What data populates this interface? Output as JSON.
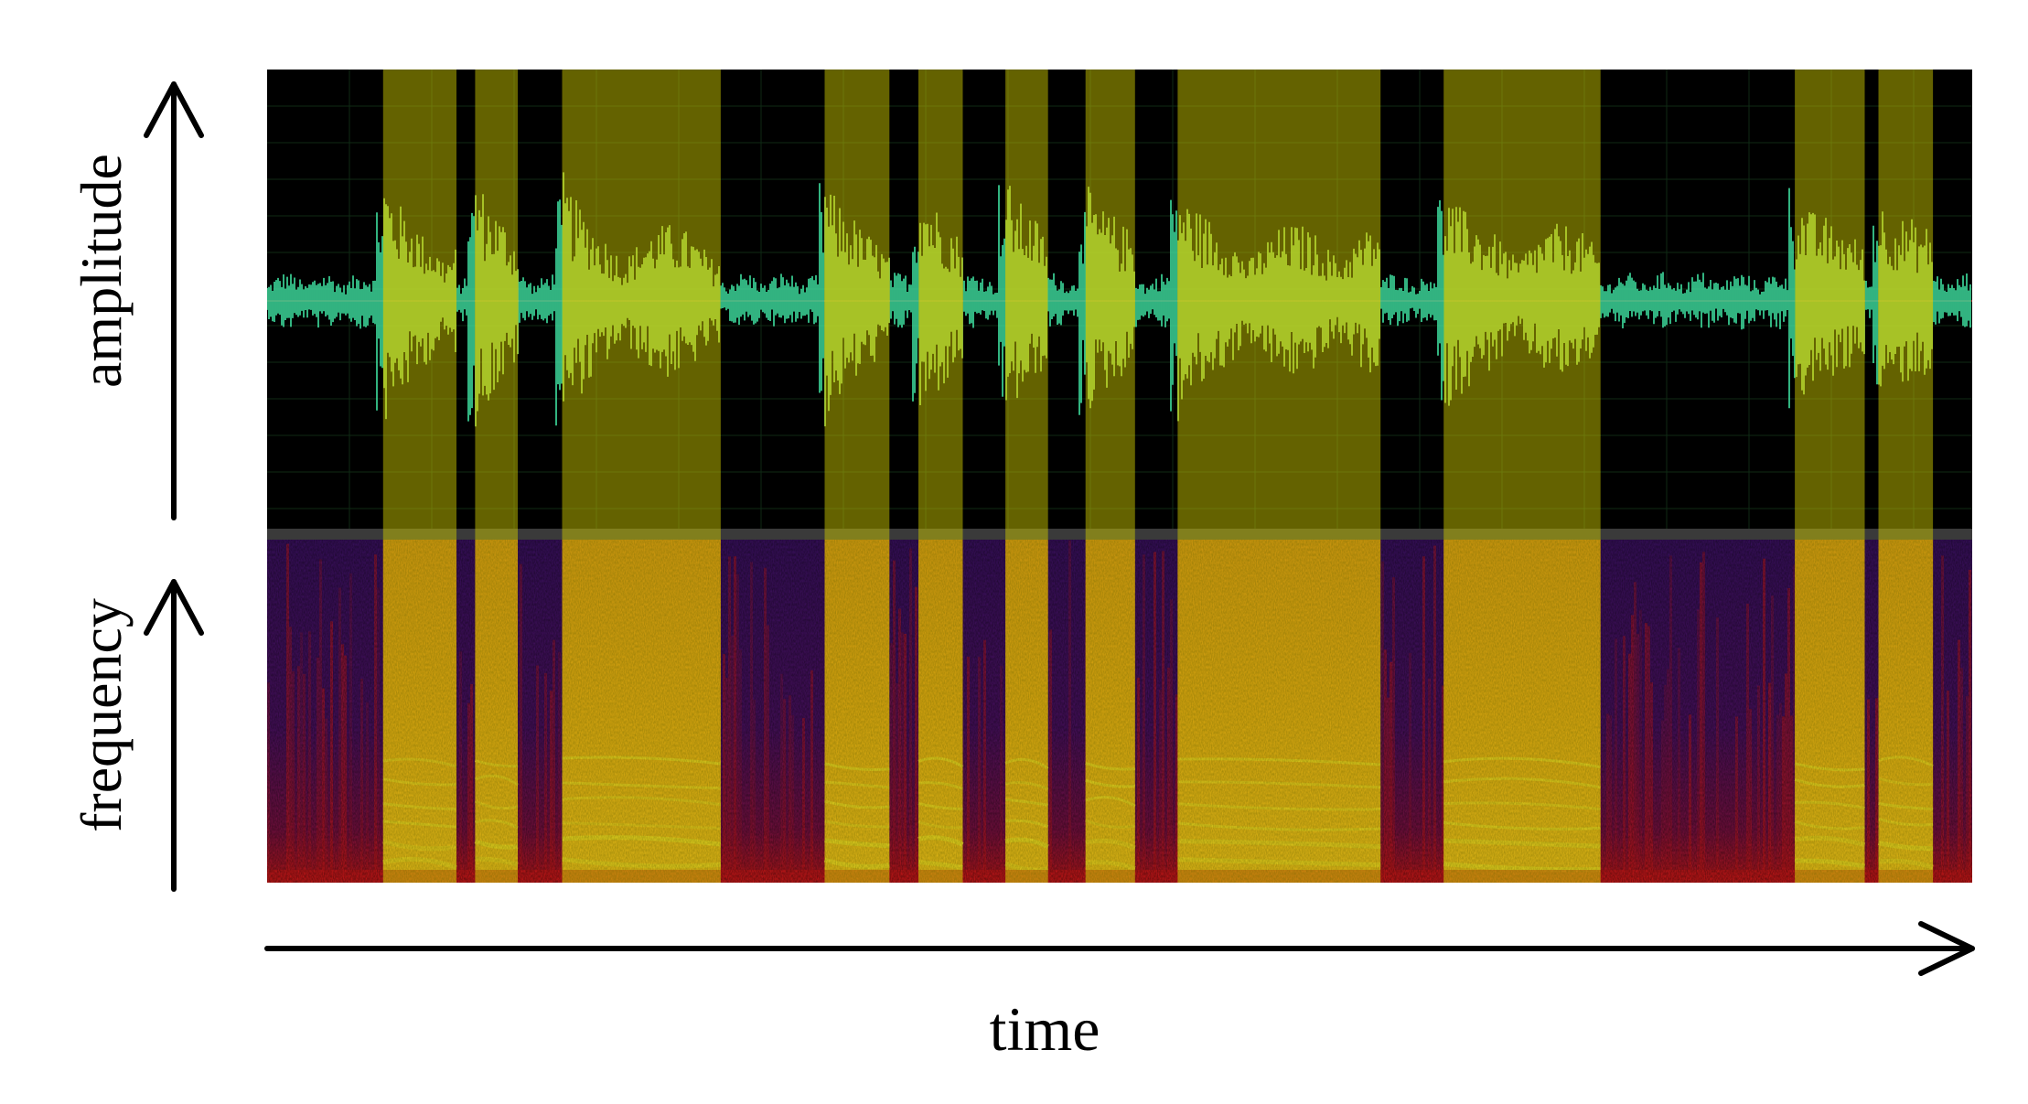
{
  "labels": {
    "amplitude": "amplitude",
    "frequency": "frequency",
    "time": "time"
  },
  "colors": {
    "background": "#ffffff",
    "waveform_bg": "#000000",
    "grid": "#0f2a14",
    "divider": "#3a3a3a",
    "waveform_unvoiced": "#3fe0a0",
    "waveform_voiced": "#a8f060",
    "center_line": "#d02020",
    "highlight": "#c8c400",
    "spec_low": "#2a0a50",
    "spec_mid": "#d01818",
    "spec_high": "#ffe040",
    "arrow": "#000000"
  },
  "time_range": [
    0,
    1
  ],
  "voiced_segments": [
    [
      0.068,
      0.111
    ],
    [
      0.122,
      0.147
    ],
    [
      0.173,
      0.266
    ],
    [
      0.327,
      0.365
    ],
    [
      0.382,
      0.408
    ],
    [
      0.433,
      0.458
    ],
    [
      0.48,
      0.509
    ],
    [
      0.534,
      0.653
    ],
    [
      0.69,
      0.782
    ],
    [
      0.896,
      0.937
    ],
    [
      0.945,
      0.977
    ]
  ]
}
